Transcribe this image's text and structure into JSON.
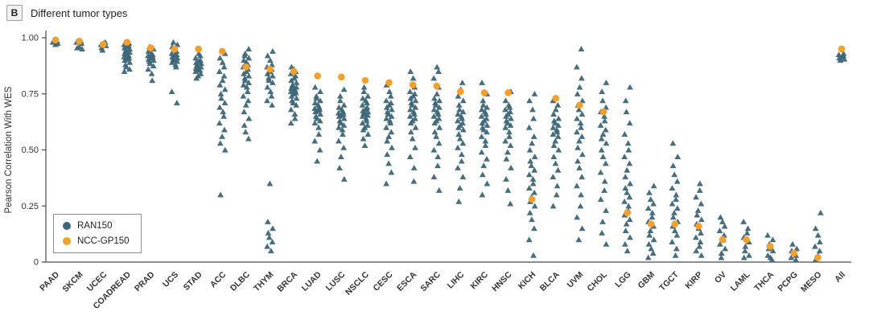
{
  "panel": {
    "label": "B",
    "title": "Different tumor types"
  },
  "legend": {
    "items": [
      {
        "label": "RAN150",
        "color": "#3d6678"
      },
      {
        "label": "NCC-GP150",
        "color": "#f5a02c"
      }
    ]
  },
  "colors": {
    "background": "#ffffff",
    "axis": "#4a4a4a",
    "tick_text": "#333333",
    "triangle": "#3d6678",
    "dot": "#f5a02c"
  },
  "chart_data": {
    "type": "scatter",
    "title": "Different tumor types",
    "xlabel": "",
    "ylabel": "Pearson Correlation With WES",
    "ylim": [
      0,
      1.0
    ],
    "ytick_values": [
      0,
      0.25,
      0.5,
      0.75,
      1.0
    ],
    "ytick_labels": [
      "0",
      "0.25",
      "0.50",
      "0.75",
      "1.00"
    ],
    "grid": false,
    "legend_position": "inside bottom-left",
    "categories": [
      "PAAD",
      "SKCM",
      "UCEC",
      "COADREAD",
      "PRAD",
      "UCS",
      "STAD",
      "ACC",
      "DLBC",
      "THYM",
      "BRCA",
      "LUAD",
      "LUSC",
      "NSCLC",
      "CESC",
      "ESCA",
      "SARC",
      "LIHC",
      "KIRC",
      "HNSC",
      "KICH",
      "BLCA",
      "UVM",
      "CHOL",
      "LGG",
      "GBM",
      "TGCT",
      "KIRP",
      "OV",
      "LAML",
      "THCA",
      "PCPG",
      "MESO",
      "All"
    ],
    "series": [
      {
        "name": "RAN150",
        "marker": "triangle",
        "color": "#3d6678",
        "values_by_category": [
          [
            0.97,
            0.975,
            0.98,
            0.985,
            0.99
          ],
          [
            0.95,
            0.955,
            0.96,
            0.975,
            0.98,
            0.985
          ],
          [
            0.945,
            0.955,
            0.965,
            0.97,
            0.975,
            0.98
          ],
          [
            0.85,
            0.86,
            0.87,
            0.88,
            0.89,
            0.9,
            0.905,
            0.91,
            0.915,
            0.92,
            0.925,
            0.93,
            0.935,
            0.94,
            0.945,
            0.95,
            0.955,
            0.96,
            0.965,
            0.97,
            0.975
          ],
          [
            0.81,
            0.84,
            0.86,
            0.875,
            0.885,
            0.895,
            0.9,
            0.905,
            0.91,
            0.915,
            0.92,
            0.925,
            0.93,
            0.94,
            0.95,
            0.96
          ],
          [
            0.71,
            0.76,
            0.87,
            0.88,
            0.89,
            0.895,
            0.9,
            0.905,
            0.91,
            0.915,
            0.92,
            0.925,
            0.93,
            0.94,
            0.95,
            0.96,
            0.97,
            0.98
          ],
          [
            0.82,
            0.83,
            0.84,
            0.85,
            0.855,
            0.86,
            0.865,
            0.87,
            0.875,
            0.88,
            0.885,
            0.89,
            0.895,
            0.9,
            0.91,
            0.92,
            0.93
          ],
          [
            0.3,
            0.5,
            0.53,
            0.56,
            0.59,
            0.62,
            0.65,
            0.67,
            0.69,
            0.71,
            0.73,
            0.75,
            0.77,
            0.79,
            0.81,
            0.83,
            0.85,
            0.87,
            0.89,
            0.91,
            0.93
          ],
          [
            0.55,
            0.58,
            0.61,
            0.64,
            0.67,
            0.7,
            0.72,
            0.74,
            0.76,
            0.78,
            0.79,
            0.8,
            0.81,
            0.82,
            0.83,
            0.84,
            0.85,
            0.86,
            0.87,
            0.88,
            0.89,
            0.9,
            0.91,
            0.92,
            0.93,
            0.95
          ],
          [
            0.05,
            0.07,
            0.09,
            0.11,
            0.13,
            0.15,
            0.18,
            0.35,
            0.7,
            0.72,
            0.74,
            0.76,
            0.78,
            0.8,
            0.81,
            0.82,
            0.83,
            0.84,
            0.85,
            0.86,
            0.87,
            0.88,
            0.9,
            0.92,
            0.94
          ],
          [
            0.62,
            0.64,
            0.66,
            0.68,
            0.7,
            0.71,
            0.72,
            0.73,
            0.74,
            0.75,
            0.755,
            0.76,
            0.765,
            0.77,
            0.775,
            0.78,
            0.785,
            0.79,
            0.8,
            0.81,
            0.82,
            0.83,
            0.84,
            0.85,
            0.86,
            0.87
          ],
          [
            0.45,
            0.5,
            0.54,
            0.57,
            0.6,
            0.62,
            0.63,
            0.64,
            0.65,
            0.66,
            0.67,
            0.675,
            0.68,
            0.685,
            0.69,
            0.7,
            0.71,
            0.72,
            0.73,
            0.74,
            0.76,
            0.78
          ],
          [
            0.37,
            0.42,
            0.47,
            0.51,
            0.54,
            0.57,
            0.59,
            0.6,
            0.61,
            0.62,
            0.63,
            0.64,
            0.65,
            0.655,
            0.66,
            0.665,
            0.67,
            0.68,
            0.69,
            0.7,
            0.72,
            0.74,
            0.77
          ],
          [
            0.52,
            0.55,
            0.57,
            0.59,
            0.6,
            0.61,
            0.62,
            0.63,
            0.64,
            0.65,
            0.655,
            0.66,
            0.665,
            0.67,
            0.675,
            0.68,
            0.69,
            0.7,
            0.71,
            0.72,
            0.73,
            0.74,
            0.76,
            0.78
          ],
          [
            0.35,
            0.4,
            0.44,
            0.48,
            0.51,
            0.54,
            0.56,
            0.58,
            0.6,
            0.62,
            0.63,
            0.64,
            0.65,
            0.66,
            0.67,
            0.68,
            0.69,
            0.7,
            0.71,
            0.72,
            0.74,
            0.76,
            0.79
          ],
          [
            0.36,
            0.42,
            0.47,
            0.51,
            0.55,
            0.58,
            0.6,
            0.62,
            0.63,
            0.64,
            0.65,
            0.66,
            0.67,
            0.68,
            0.69,
            0.7,
            0.71,
            0.72,
            0.73,
            0.74,
            0.75,
            0.76,
            0.78,
            0.82,
            0.85
          ],
          [
            0.32,
            0.38,
            0.43,
            0.47,
            0.5,
            0.53,
            0.56,
            0.58,
            0.6,
            0.62,
            0.63,
            0.64,
            0.65,
            0.66,
            0.67,
            0.68,
            0.69,
            0.7,
            0.71,
            0.72,
            0.73,
            0.75,
            0.78,
            0.82,
            0.85,
            0.87
          ],
          [
            0.27,
            0.33,
            0.38,
            0.42,
            0.45,
            0.48,
            0.51,
            0.53,
            0.55,
            0.57,
            0.59,
            0.6,
            0.61,
            0.62,
            0.63,
            0.64,
            0.65,
            0.66,
            0.67,
            0.68,
            0.7,
            0.72,
            0.74,
            0.77,
            0.8
          ],
          [
            0.3,
            0.35,
            0.39,
            0.43,
            0.46,
            0.49,
            0.52,
            0.54,
            0.56,
            0.58,
            0.59,
            0.6,
            0.61,
            0.62,
            0.63,
            0.64,
            0.65,
            0.66,
            0.67,
            0.68,
            0.69,
            0.7,
            0.72,
            0.75,
            0.8
          ],
          [
            0.26,
            0.32,
            0.37,
            0.42,
            0.46,
            0.49,
            0.52,
            0.54,
            0.56,
            0.58,
            0.6,
            0.61,
            0.62,
            0.63,
            0.64,
            0.65,
            0.66,
            0.67,
            0.68,
            0.69,
            0.7,
            0.72,
            0.76
          ],
          [
            0.03,
            0.1,
            0.15,
            0.19,
            0.22,
            0.25,
            0.27,
            0.29,
            0.31,
            0.33,
            0.35,
            0.37,
            0.39,
            0.41,
            0.43,
            0.45,
            0.47,
            0.5,
            0.53,
            0.56,
            0.6,
            0.64,
            0.68,
            0.72,
            0.75
          ],
          [
            0.25,
            0.3,
            0.34,
            0.38,
            0.41,
            0.44,
            0.47,
            0.5,
            0.52,
            0.54,
            0.56,
            0.57,
            0.58,
            0.59,
            0.6,
            0.61,
            0.62,
            0.63,
            0.64,
            0.66,
            0.68,
            0.7,
            0.72
          ],
          [
            0.1,
            0.15,
            0.2,
            0.25,
            0.3,
            0.34,
            0.38,
            0.42,
            0.45,
            0.48,
            0.51,
            0.54,
            0.56,
            0.58,
            0.6,
            0.62,
            0.64,
            0.66,
            0.68,
            0.7,
            0.72,
            0.75,
            0.78,
            0.82,
            0.87,
            0.95
          ],
          [
            0.08,
            0.13,
            0.18,
            0.23,
            0.28,
            0.32,
            0.36,
            0.4,
            0.44,
            0.47,
            0.5,
            0.53,
            0.55,
            0.57,
            0.59,
            0.61,
            0.63,
            0.65,
            0.67,
            0.69,
            0.72,
            0.76,
            0.8
          ],
          [
            0.05,
            0.08,
            0.11,
            0.14,
            0.17,
            0.19,
            0.21,
            0.23,
            0.25,
            0.27,
            0.29,
            0.31,
            0.33,
            0.35,
            0.38,
            0.41,
            0.44,
            0.47,
            0.5,
            0.53,
            0.57,
            0.62,
            0.67,
            0.72,
            0.78
          ],
          [
            0.02,
            0.04,
            0.06,
            0.08,
            0.1,
            0.12,
            0.14,
            0.16,
            0.18,
            0.2,
            0.22,
            0.24,
            0.26,
            0.28,
            0.31,
            0.34
          ],
          [
            0.03,
            0.06,
            0.09,
            0.12,
            0.14,
            0.16,
            0.18,
            0.2,
            0.22,
            0.24,
            0.26,
            0.28,
            0.3,
            0.33,
            0.36,
            0.39,
            0.43,
            0.47,
            0.53
          ],
          [
            0.03,
            0.05,
            0.07,
            0.09,
            0.11,
            0.13,
            0.15,
            0.17,
            0.19,
            0.21,
            0.23,
            0.26,
            0.29,
            0.32,
            0.35
          ],
          [
            0.02,
            0.04,
            0.06,
            0.08,
            0.1,
            0.12,
            0.14,
            0.16,
            0.18,
            0.2
          ],
          [
            0.02,
            0.03,
            0.05,
            0.07,
            0.09,
            0.11,
            0.13,
            0.15,
            0.18
          ],
          [
            0.01,
            0.02,
            0.03,
            0.05,
            0.06,
            0.08,
            0.1,
            0.12
          ],
          [
            0.01,
            0.02,
            0.03,
            0.04,
            0.05,
            0.06,
            0.08
          ],
          [
            0.01,
            0.03,
            0.05,
            0.07,
            0.09,
            0.12,
            0.15,
            0.22
          ],
          [
            0.9,
            0.905,
            0.91,
            0.915,
            0.92,
            0.925,
            0.93
          ]
        ]
      },
      {
        "name": "NCC-GP150",
        "marker": "circle",
        "color": "#f5a02c",
        "values": [
          0.99,
          0.985,
          0.97,
          0.98,
          0.955,
          0.95,
          0.95,
          0.94,
          0.87,
          0.86,
          0.85,
          0.83,
          0.825,
          0.81,
          0.8,
          0.79,
          0.785,
          0.76,
          0.755,
          0.755,
          0.28,
          0.73,
          0.7,
          0.67,
          0.22,
          0.17,
          0.17,
          0.16,
          0.1,
          0.1,
          0.07,
          0.04,
          0.02,
          0.95
        ]
      }
    ]
  }
}
